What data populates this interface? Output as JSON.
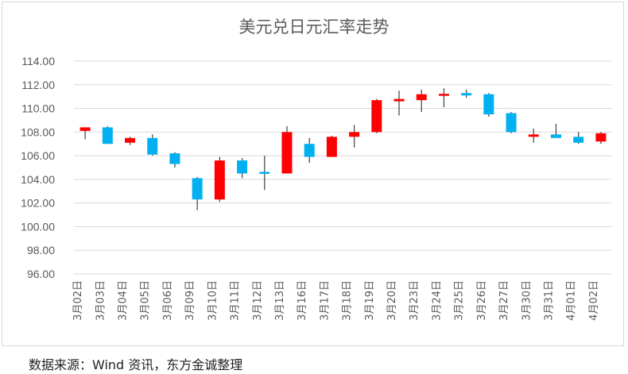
{
  "chart_data": {
    "type": "candlestick",
    "title": "美元兑日元汇率走势",
    "source": "数据来源：Wind 资讯，东方金诚整理",
    "ylim": [
      96,
      114
    ],
    "ytick_step": 2,
    "ytick_labels": [
      "96.00",
      "98.00",
      "100.00",
      "102.00",
      "104.00",
      "106.00",
      "108.00",
      "110.00",
      "112.00",
      "114.00"
    ],
    "grid": true,
    "up_color": "#ff0000",
    "down_color": "#00b0f0",
    "wick_color": "#404040",
    "categories": [
      "3月02日",
      "3月03日",
      "3月04日",
      "3月05日",
      "3月06日",
      "3月09日",
      "3月10日",
      "3月11日",
      "3月12日",
      "3月13日",
      "3月16日",
      "3月17日",
      "3月18日",
      "3月19日",
      "3月20日",
      "3月23日",
      "3月24日",
      "3月25日",
      "3月26日",
      "3月27日",
      "3月30日",
      "3月31日",
      "4月01日",
      "4月02日"
    ],
    "ohlc": [
      {
        "open": 108.1,
        "high": 108.4,
        "low": 107.4,
        "close": 108.4
      },
      {
        "open": 108.4,
        "high": 108.5,
        "low": 107.0,
        "close": 107.0
      },
      {
        "open": 107.1,
        "high": 107.6,
        "low": 106.9,
        "close": 107.5
      },
      {
        "open": 107.5,
        "high": 107.8,
        "low": 106.0,
        "close": 106.1
      },
      {
        "open": 106.2,
        "high": 106.3,
        "low": 105.0,
        "close": 105.3
      },
      {
        "open": 104.1,
        "high": 104.2,
        "low": 101.4,
        "close": 102.3
      },
      {
        "open": 102.3,
        "high": 105.9,
        "low": 102.1,
        "close": 105.6
      },
      {
        "open": 105.6,
        "high": 105.8,
        "low": 104.1,
        "close": 104.5
      },
      {
        "open": 104.6,
        "high": 106.0,
        "low": 103.1,
        "close": 104.5
      },
      {
        "open": 104.5,
        "high": 108.5,
        "low": 104.5,
        "close": 108.0
      },
      {
        "open": 107.0,
        "high": 107.5,
        "low": 105.4,
        "close": 105.9
      },
      {
        "open": 105.9,
        "high": 107.7,
        "low": 105.9,
        "close": 107.6
      },
      {
        "open": 107.6,
        "high": 108.6,
        "low": 106.7,
        "close": 108.0
      },
      {
        "open": 108.0,
        "high": 110.8,
        "low": 107.9,
        "close": 110.7
      },
      {
        "open": 110.6,
        "high": 111.5,
        "low": 109.4,
        "close": 110.8
      },
      {
        "open": 110.7,
        "high": 111.6,
        "low": 109.7,
        "close": 111.2
      },
      {
        "open": 111.1,
        "high": 111.7,
        "low": 110.1,
        "close": 111.2
      },
      {
        "open": 111.3,
        "high": 111.6,
        "low": 110.9,
        "close": 111.1
      },
      {
        "open": 111.2,
        "high": 111.3,
        "low": 109.3,
        "close": 109.5
      },
      {
        "open": 109.6,
        "high": 109.7,
        "low": 107.9,
        "close": 108.0
      },
      {
        "open": 107.6,
        "high": 108.3,
        "low": 107.1,
        "close": 107.8
      },
      {
        "open": 107.8,
        "high": 108.7,
        "low": 107.5,
        "close": 107.5
      },
      {
        "open": 107.6,
        "high": 108.0,
        "low": 107.0,
        "close": 107.1
      },
      {
        "open": 107.2,
        "high": 108.0,
        "low": 107.0,
        "close": 107.9
      }
    ]
  }
}
